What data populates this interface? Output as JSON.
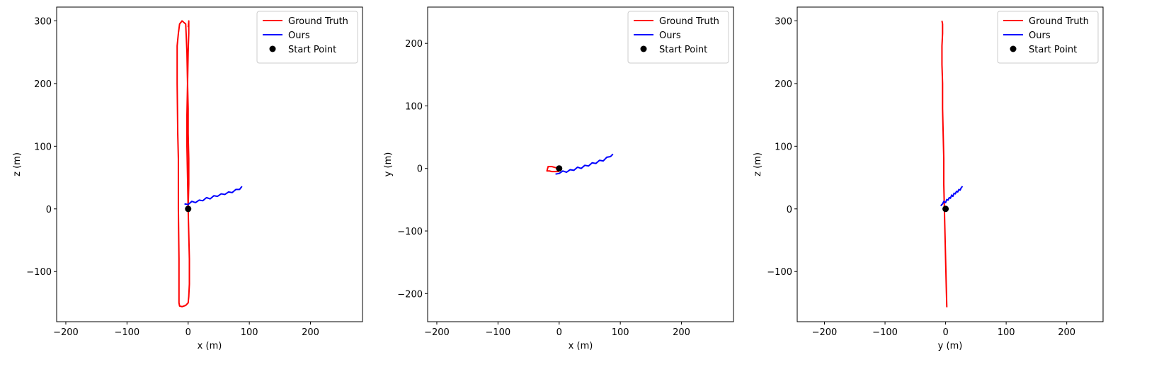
{
  "legend": {
    "ground_truth": "Ground Truth",
    "ours": "Ours",
    "start_point": "Start Point"
  },
  "colors": {
    "ground_truth": "#ff0000",
    "ours": "#0000ff",
    "start_point": "#000000"
  },
  "chart_data": [
    {
      "type": "line",
      "title": "",
      "xlabel": "x (m)",
      "ylabel": "z (m)",
      "xlim": [
        -215,
        285
      ],
      "ylim": [
        -180,
        322
      ],
      "xticks": [
        -200,
        -100,
        0,
        100,
        200
      ],
      "yticks": [
        -100,
        0,
        100,
        200,
        300
      ],
      "grid": false,
      "legend_position": "top-right",
      "series": [
        {
          "name": "Ground Truth",
          "x": [
            0,
            1,
            1,
            0,
            0,
            -1,
            -2,
            -4,
            -10,
            -14,
            -16,
            -18,
            -18,
            -17,
            -16,
            -16,
            -15,
            -15,
            -15,
            -14,
            -10,
            -4,
            0,
            1,
            2,
            2,
            1,
            0,
            -1,
            -2,
            -2,
            -1,
            0,
            1,
            1,
            1,
            0
          ],
          "y": [
            0,
            40,
            80,
            120,
            160,
            200,
            250,
            295,
            300,
            295,
            280,
            260,
            200,
            120,
            80,
            0,
            -80,
            -140,
            -150,
            -155,
            -156,
            -154,
            -150,
            -140,
            -120,
            -80,
            -40,
            0,
            50,
            100,
            150,
            200,
            250,
            280,
            300,
            298,
            290
          ]
        },
        {
          "name": "Ours",
          "x": [
            -6,
            0,
            6,
            12,
            18,
            24,
            30,
            36,
            42,
            48,
            54,
            60,
            66,
            72,
            78,
            84,
            88
          ],
          "y": [
            8,
            7,
            12,
            10,
            14,
            13,
            18,
            16,
            21,
            20,
            24,
            23,
            27,
            26,
            31,
            31,
            36
          ]
        },
        {
          "name": "Start Point",
          "marker": "point",
          "x": [
            0
          ],
          "y": [
            0
          ]
        }
      ]
    },
    {
      "type": "line",
      "title": "",
      "xlabel": "x (m)",
      "ylabel": "y (m)",
      "xlim": [
        -215,
        285
      ],
      "ylim": [
        -245,
        258
      ],
      "xticks": [
        -200,
        -100,
        0,
        100,
        200
      ],
      "yticks": [
        -200,
        -100,
        0,
        100,
        200
      ],
      "grid": false,
      "legend_position": "top-right",
      "series": [
        {
          "name": "Ground Truth",
          "x": [
            0,
            -5,
            -12,
            -18,
            -20,
            -16,
            -12,
            -5,
            0
          ],
          "y": [
            0,
            1,
            3,
            3,
            -4,
            -4,
            -5,
            -5,
            -5
          ]
        },
        {
          "name": "Ours",
          "x": [
            -6,
            0,
            6,
            12,
            18,
            24,
            30,
            36,
            42,
            48,
            54,
            60,
            66,
            72,
            78,
            84,
            88
          ],
          "y": [
            -9,
            -8,
            -4,
            -6,
            -2,
            -3,
            2,
            0,
            5,
            4,
            9,
            8,
            13,
            12,
            18,
            19,
            23
          ]
        },
        {
          "name": "Start Point",
          "marker": "point",
          "x": [
            0
          ],
          "y": [
            0
          ]
        }
      ]
    },
    {
      "type": "line",
      "title": "",
      "xlabel": "y (m)",
      "ylabel": "z (m)",
      "xlim": [
        -245,
        260
      ],
      "ylim": [
        -180,
        322
      ],
      "xticks": [
        -200,
        -100,
        0,
        100,
        200
      ],
      "yticks": [
        -100,
        0,
        100,
        200,
        300
      ],
      "grid": false,
      "legend_position": "top-right",
      "series": [
        {
          "name": "Ground Truth",
          "x": [
            2,
            1,
            0,
            -1,
            -2,
            -3,
            -3,
            -4,
            -5,
            -5,
            -6,
            -6,
            -5,
            -5,
            -6
          ],
          "y": [
            -157,
            -120,
            -80,
            -40,
            0,
            40,
            80,
            120,
            160,
            200,
            230,
            260,
            280,
            295,
            300
          ]
        },
        {
          "name": "Ours",
          "x": [
            -8,
            -5,
            -3,
            0,
            2,
            4,
            6,
            8,
            10,
            12,
            14,
            16,
            18,
            20,
            22,
            24,
            26,
            28
          ],
          "y": [
            5,
            8,
            12,
            10,
            15,
            14,
            18,
            17,
            22,
            20,
            25,
            24,
            28,
            27,
            31,
            30,
            34,
            36
          ]
        },
        {
          "name": "Start Point",
          "marker": "point",
          "x": [
            0
          ],
          "y": [
            0
          ]
        }
      ]
    }
  ]
}
